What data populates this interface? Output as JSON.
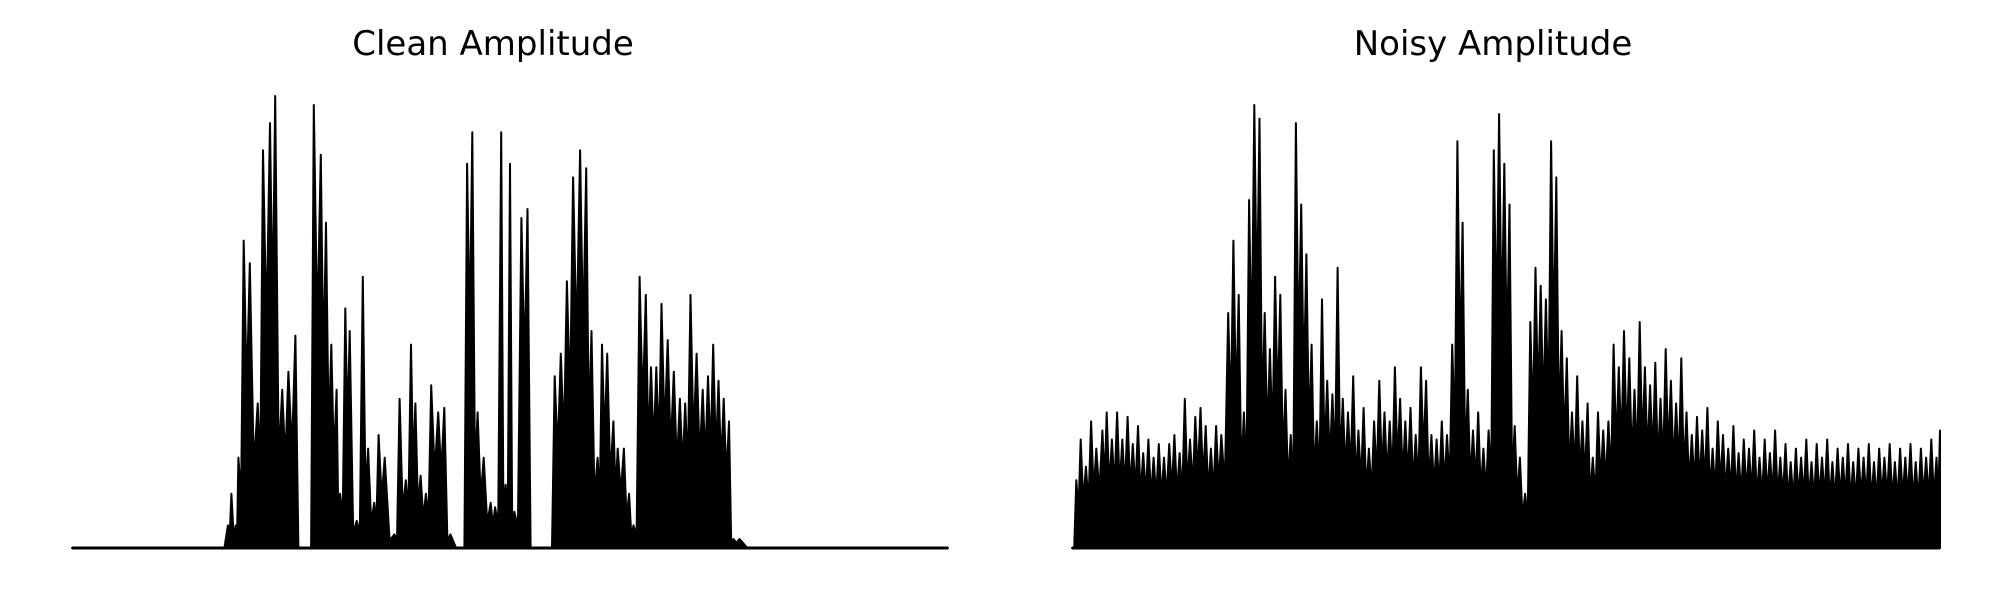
{
  "colors": {
    "background": "#ffffff",
    "waveform": "#000000"
  },
  "chart_data": [
    {
      "type": "area",
      "title": "Clean Amplitude",
      "axes_visible": false,
      "ylim": [
        0,
        1
      ],
      "envelope": [
        [
          0.0,
          0.0
        ],
        [
          0.17,
          0.0
        ],
        [
          0.178,
          0.05
        ],
        [
          0.182,
          0.12
        ],
        [
          0.187,
          0.05
        ],
        [
          0.19,
          0.2
        ],
        [
          0.196,
          0.68
        ],
        [
          0.203,
          0.63
        ],
        [
          0.212,
          0.32
        ],
        [
          0.218,
          0.88
        ],
        [
          0.226,
          0.94
        ],
        [
          0.232,
          1.0
        ],
        [
          0.24,
          0.35
        ],
        [
          0.247,
          0.39
        ],
        [
          0.255,
          0.47
        ],
        [
          0.262,
          0.0
        ],
        [
          0.27,
          0.0
        ],
        [
          0.276,
          0.98
        ],
        [
          0.284,
          0.87
        ],
        [
          0.29,
          0.72
        ],
        [
          0.296,
          0.45
        ],
        [
          0.302,
          0.35
        ],
        [
          0.306,
          0.12
        ],
        [
          0.312,
          0.53
        ],
        [
          0.317,
          0.48
        ],
        [
          0.325,
          0.06
        ],
        [
          0.332,
          0.6
        ],
        [
          0.338,
          0.22
        ],
        [
          0.345,
          0.1
        ],
        [
          0.35,
          0.25
        ],
        [
          0.357,
          0.2
        ],
        [
          0.368,
          0.03
        ],
        [
          0.374,
          0.33
        ],
        [
          0.381,
          0.15
        ],
        [
          0.387,
          0.45
        ],
        [
          0.392,
          0.32
        ],
        [
          0.398,
          0.16
        ],
        [
          0.404,
          0.12
        ],
        [
          0.41,
          0.36
        ],
        [
          0.418,
          0.3
        ],
        [
          0.425,
          0.31
        ],
        [
          0.432,
          0.03
        ],
        [
          0.445,
          0.0
        ],
        [
          0.451,
          0.85
        ],
        [
          0.457,
          0.92
        ],
        [
          0.463,
          0.3
        ],
        [
          0.47,
          0.2
        ],
        [
          0.478,
          0.1
        ],
        [
          0.483,
          0.09
        ],
        [
          0.49,
          0.92
        ],
        [
          0.495,
          0.14
        ],
        [
          0.5,
          0.85
        ],
        [
          0.505,
          0.08
        ],
        [
          0.513,
          0.73
        ],
        [
          0.52,
          0.75
        ],
        [
          0.527,
          0.0
        ],
        [
          0.545,
          0.0
        ],
        [
          0.551,
          0.38
        ],
        [
          0.558,
          0.43
        ],
        [
          0.565,
          0.59
        ],
        [
          0.572,
          0.82
        ],
        [
          0.58,
          0.88
        ],
        [
          0.587,
          0.84
        ],
        [
          0.593,
          0.48
        ],
        [
          0.6,
          0.2
        ],
        [
          0.605,
          0.45
        ],
        [
          0.611,
          0.43
        ],
        [
          0.618,
          0.28
        ],
        [
          0.623,
          0.22
        ],
        [
          0.63,
          0.22
        ],
        [
          0.636,
          0.12
        ],
        [
          0.641,
          0.05
        ],
        [
          0.648,
          0.6
        ],
        [
          0.655,
          0.56
        ],
        [
          0.661,
          0.4
        ],
        [
          0.667,
          0.4
        ],
        [
          0.673,
          0.54
        ],
        [
          0.68,
          0.46
        ],
        [
          0.687,
          0.39
        ],
        [
          0.694,
          0.33
        ],
        [
          0.7,
          0.32
        ],
        [
          0.706,
          0.56
        ],
        [
          0.713,
          0.43
        ],
        [
          0.72,
          0.35
        ],
        [
          0.726,
          0.38
        ],
        [
          0.732,
          0.45
        ],
        [
          0.738,
          0.37
        ],
        [
          0.744,
          0.33
        ],
        [
          0.75,
          0.28
        ],
        [
          0.755,
          0.02
        ],
        [
          0.762,
          0.02
        ],
        [
          0.78,
          0.0
        ],
        [
          1.0,
          0.0
        ]
      ]
    },
    {
      "type": "area",
      "title": "Noisy Amplitude",
      "axes_visible": false,
      "ylim": [
        0,
        1
      ],
      "envelope": [
        [
          0.0,
          0.0
        ],
        [
          0.005,
          0.15
        ],
        [
          0.01,
          0.24
        ],
        [
          0.016,
          0.18
        ],
        [
          0.022,
          0.28
        ],
        [
          0.028,
          0.22
        ],
        [
          0.035,
          0.26
        ],
        [
          0.04,
          0.3
        ],
        [
          0.046,
          0.24
        ],
        [
          0.052,
          0.3
        ],
        [
          0.058,
          0.24
        ],
        [
          0.064,
          0.29
        ],
        [
          0.07,
          0.23
        ],
        [
          0.076,
          0.27
        ],
        [
          0.082,
          0.21
        ],
        [
          0.088,
          0.24
        ],
        [
          0.094,
          0.2
        ],
        [
          0.1,
          0.23
        ],
        [
          0.106,
          0.2
        ],
        [
          0.112,
          0.23
        ],
        [
          0.118,
          0.25
        ],
        [
          0.124,
          0.21
        ],
        [
          0.13,
          0.33
        ],
        [
          0.136,
          0.24
        ],
        [
          0.142,
          0.29
        ],
        [
          0.148,
          0.31
        ],
        [
          0.154,
          0.27
        ],
        [
          0.16,
          0.22
        ],
        [
          0.166,
          0.27
        ],
        [
          0.172,
          0.25
        ],
        [
          0.18,
          0.52
        ],
        [
          0.186,
          0.68
        ],
        [
          0.192,
          0.56
        ],
        [
          0.198,
          0.3
        ],
        [
          0.204,
          0.77
        ],
        [
          0.21,
          0.98
        ],
        [
          0.216,
          0.95
        ],
        [
          0.222,
          0.52
        ],
        [
          0.228,
          0.44
        ],
        [
          0.234,
          0.6
        ],
        [
          0.24,
          0.56
        ],
        [
          0.246,
          0.35
        ],
        [
          0.252,
          0.25
        ],
        [
          0.258,
          0.94
        ],
        [
          0.264,
          0.76
        ],
        [
          0.27,
          0.65
        ],
        [
          0.276,
          0.45
        ],
        [
          0.282,
          0.28
        ],
        [
          0.288,
          0.55
        ],
        [
          0.294,
          0.37
        ],
        [
          0.3,
          0.34
        ],
        [
          0.306,
          0.62
        ],
        [
          0.312,
          0.33
        ],
        [
          0.318,
          0.3
        ],
        [
          0.324,
          0.38
        ],
        [
          0.33,
          0.26
        ],
        [
          0.336,
          0.31
        ],
        [
          0.342,
          0.22
        ],
        [
          0.348,
          0.28
        ],
        [
          0.354,
          0.37
        ],
        [
          0.36,
          0.3
        ],
        [
          0.366,
          0.28
        ],
        [
          0.372,
          0.4
        ],
        [
          0.378,
          0.33
        ],
        [
          0.384,
          0.28
        ],
        [
          0.39,
          0.31
        ],
        [
          0.396,
          0.25
        ],
        [
          0.402,
          0.4
        ],
        [
          0.408,
          0.37
        ],
        [
          0.414,
          0.25
        ],
        [
          0.42,
          0.24
        ],
        [
          0.426,
          0.28
        ],
        [
          0.432,
          0.25
        ],
        [
          0.438,
          0.45
        ],
        [
          0.444,
          0.9
        ],
        [
          0.45,
          0.72
        ],
        [
          0.456,
          0.35
        ],
        [
          0.462,
          0.26
        ],
        [
          0.468,
          0.3
        ],
        [
          0.474,
          0.22
        ],
        [
          0.48,
          0.26
        ],
        [
          0.486,
          0.88
        ],
        [
          0.492,
          0.96
        ],
        [
          0.498,
          0.85
        ],
        [
          0.504,
          0.76
        ],
        [
          0.51,
          0.27
        ],
        [
          0.516,
          0.2
        ],
        [
          0.522,
          0.12
        ],
        [
          0.528,
          0.5
        ],
        [
          0.534,
          0.62
        ],
        [
          0.54,
          0.58
        ],
        [
          0.546,
          0.55
        ],
        [
          0.552,
          0.9
        ],
        [
          0.558,
          0.82
        ],
        [
          0.564,
          0.48
        ],
        [
          0.57,
          0.42
        ],
        [
          0.576,
          0.3
        ],
        [
          0.582,
          0.38
        ],
        [
          0.588,
          0.28
        ],
        [
          0.594,
          0.32
        ],
        [
          0.6,
          0.2
        ],
        [
          0.606,
          0.3
        ],
        [
          0.612,
          0.26
        ],
        [
          0.618,
          0.28
        ],
        [
          0.624,
          0.45
        ],
        [
          0.63,
          0.4
        ],
        [
          0.636,
          0.48
        ],
        [
          0.642,
          0.42
        ],
        [
          0.648,
          0.35
        ],
        [
          0.654,
          0.5
        ],
        [
          0.66,
          0.4
        ],
        [
          0.666,
          0.36
        ],
        [
          0.672,
          0.41
        ],
        [
          0.678,
          0.33
        ],
        [
          0.684,
          0.44
        ],
        [
          0.69,
          0.37
        ],
        [
          0.696,
          0.32
        ],
        [
          0.702,
          0.42
        ],
        [
          0.708,
          0.3
        ],
        [
          0.714,
          0.25
        ],
        [
          0.72,
          0.29
        ],
        [
          0.726,
          0.26
        ],
        [
          0.732,
          0.31
        ],
        [
          0.738,
          0.22
        ],
        [
          0.744,
          0.28
        ],
        [
          0.75,
          0.25
        ],
        [
          0.756,
          0.22
        ],
        [
          0.762,
          0.27
        ],
        [
          0.768,
          0.21
        ],
        [
          0.774,
          0.24
        ],
        [
          0.78,
          0.22
        ],
        [
          0.786,
          0.26
        ],
        [
          0.792,
          0.2
        ],
        [
          0.798,
          0.24
        ],
        [
          0.804,
          0.21
        ],
        [
          0.81,
          0.26
        ],
        [
          0.816,
          0.2
        ],
        [
          0.822,
          0.23
        ],
        [
          0.828,
          0.19
        ],
        [
          0.834,
          0.22
        ],
        [
          0.84,
          0.2
        ],
        [
          0.846,
          0.24
        ],
        [
          0.852,
          0.19
        ],
        [
          0.858,
          0.23
        ],
        [
          0.864,
          0.2
        ],
        [
          0.87,
          0.24
        ],
        [
          0.876,
          0.19
        ],
        [
          0.882,
          0.22
        ],
        [
          0.888,
          0.2
        ],
        [
          0.894,
          0.23
        ],
        [
          0.9,
          0.19
        ],
        [
          0.906,
          0.22
        ],
        [
          0.912,
          0.2
        ],
        [
          0.918,
          0.23
        ],
        [
          0.924,
          0.19
        ],
        [
          0.93,
          0.22
        ],
        [
          0.936,
          0.2
        ],
        [
          0.942,
          0.23
        ],
        [
          0.948,
          0.19
        ],
        [
          0.954,
          0.22
        ],
        [
          0.96,
          0.2
        ],
        [
          0.966,
          0.23
        ],
        [
          0.972,
          0.19
        ],
        [
          0.978,
          0.22
        ],
        [
          0.984,
          0.2
        ],
        [
          0.99,
          0.24
        ],
        [
          0.996,
          0.2
        ],
        [
          1.0,
          0.26
        ]
      ]
    }
  ]
}
